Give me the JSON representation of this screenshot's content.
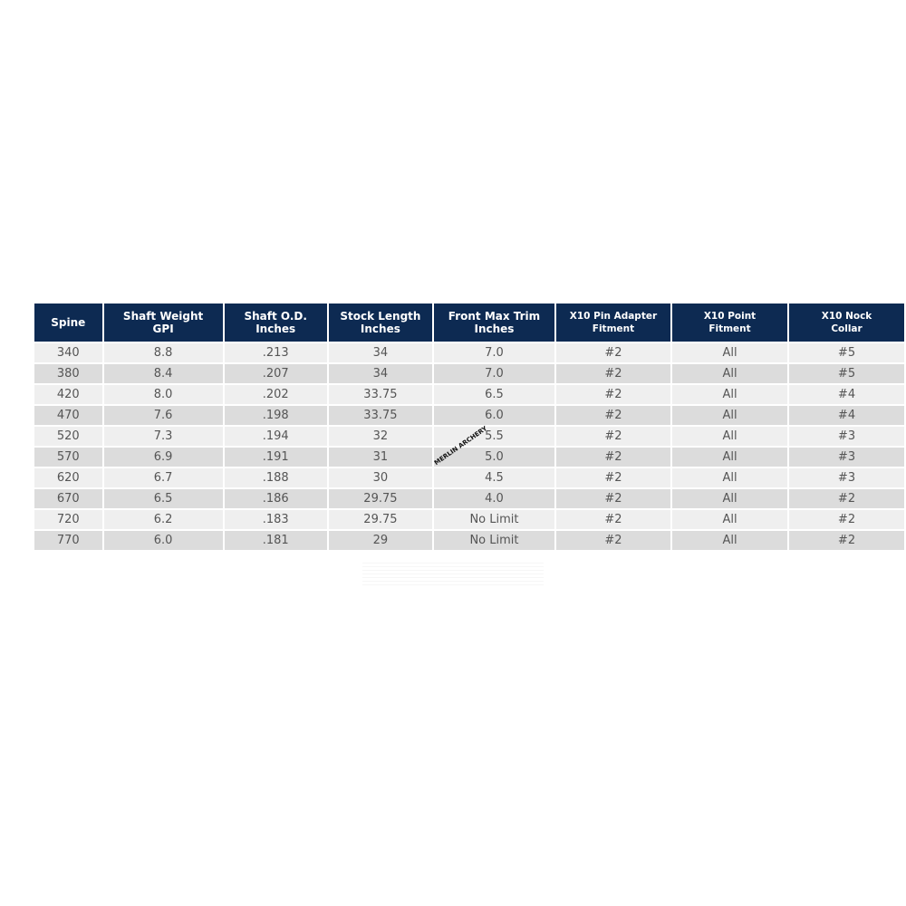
{
  "table": {
    "headers": [
      [
        "Spine",
        ""
      ],
      [
        "Shaft Weight",
        "GPI"
      ],
      [
        "Shaft O.D.",
        "Inches"
      ],
      [
        "Stock Length",
        "Inches"
      ],
      [
        "Front Max Trim",
        "Inches"
      ],
      [
        "X10 Pin Adapter",
        "Fitment"
      ],
      [
        "X10 Point",
        "Fitment"
      ],
      [
        "X10 Nock",
        "Collar"
      ]
    ],
    "rows": [
      [
        "340",
        "8.8",
        ".213",
        "34",
        "7.0",
        "#2",
        "All",
        "#5"
      ],
      [
        "380",
        "8.4",
        ".207",
        "34",
        "7.0",
        "#2",
        "All",
        "#5"
      ],
      [
        "420",
        "8.0",
        ".202",
        "33.75",
        "6.5",
        "#2",
        "All",
        "#4"
      ],
      [
        "470",
        "7.6",
        ".198",
        "33.75",
        "6.0",
        "#2",
        "All",
        "#4"
      ],
      [
        "520",
        "7.3",
        ".194",
        "32",
        "5.5",
        "#2",
        "All",
        "#3"
      ],
      [
        "570",
        "6.9",
        ".191",
        "31",
        "5.0",
        "#2",
        "All",
        "#3"
      ],
      [
        "620",
        "6.7",
        ".188",
        "30",
        "4.5",
        "#2",
        "All",
        "#3"
      ],
      [
        "670",
        "6.5",
        ".186",
        "29.75",
        "4.0",
        "#2",
        "All",
        "#2"
      ],
      [
        "720",
        "6.2",
        ".183",
        "29.75",
        "No Limit",
        "#2",
        "All",
        "#2"
      ],
      [
        "770",
        "6.0",
        ".181",
        "29",
        "No Limit",
        "#2",
        "All",
        "#2"
      ]
    ]
  },
  "watermark": "MERLIN ARCHERY",
  "colors": {
    "header_bg": "#0d2a52",
    "row_light": "#efefef",
    "row_dark": "#dcdcdc"
  }
}
